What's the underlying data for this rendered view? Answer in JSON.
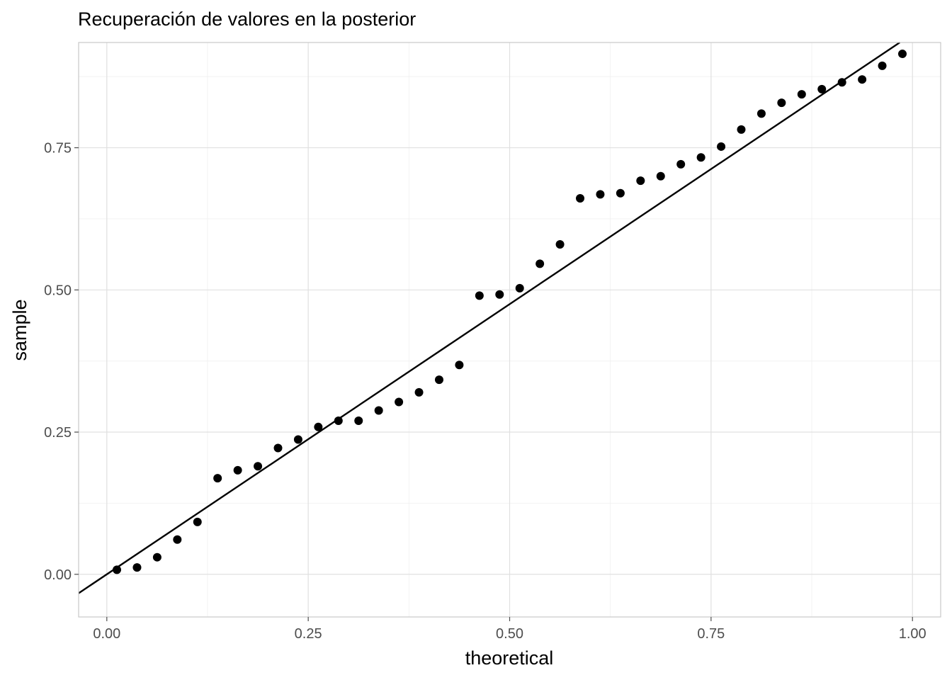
{
  "chart_data": {
    "type": "scatter",
    "title": "Recuperación de valores en la posterior",
    "xlabel": "theoretical",
    "ylabel": "sample",
    "xlim": [
      -0.035,
      1.035
    ],
    "ylim": [
      -0.075,
      0.935
    ],
    "x_ticks": [
      0.0,
      0.25,
      0.5,
      0.75,
      1.0
    ],
    "x_tick_labels": [
      "0.00",
      "0.25",
      "0.50",
      "0.75",
      "1.00"
    ],
    "y_ticks": [
      0.0,
      0.25,
      0.5,
      0.75
    ],
    "y_tick_labels": [
      "0.00",
      "0.25",
      "0.50",
      "0.75"
    ],
    "x_minor_ticks": [
      0.125,
      0.375,
      0.625,
      0.875
    ],
    "y_minor_ticks": [
      0.125,
      0.375,
      0.625,
      0.875
    ],
    "grid": true,
    "reference_line": {
      "intercept": 0.0,
      "slope": 0.95
    },
    "points": {
      "x": [
        0.0125,
        0.0375,
        0.0625,
        0.0875,
        0.1125,
        0.1375,
        0.1625,
        0.1875,
        0.2125,
        0.2375,
        0.2625,
        0.2875,
        0.3125,
        0.3375,
        0.3625,
        0.3875,
        0.4125,
        0.4375,
        0.4625,
        0.4875,
        0.5125,
        0.5375,
        0.5625,
        0.5875,
        0.6125,
        0.6375,
        0.6625,
        0.6875,
        0.7125,
        0.7375,
        0.7625,
        0.7875,
        0.8125,
        0.8375,
        0.8625,
        0.8875,
        0.9125,
        0.9375,
        0.9625,
        0.9875
      ],
      "y": [
        0.008,
        0.012,
        0.03,
        0.061,
        0.092,
        0.169,
        0.183,
        0.19,
        0.222,
        0.237,
        0.259,
        0.27,
        0.27,
        0.288,
        0.303,
        0.32,
        0.342,
        0.368,
        0.49,
        0.492,
        0.503,
        0.546,
        0.58,
        0.661,
        0.668,
        0.67,
        0.692,
        0.7,
        0.721,
        0.733,
        0.752,
        0.782,
        0.81,
        0.829,
        0.844,
        0.853,
        0.865,
        0.87,
        0.894,
        0.915
      ]
    }
  }
}
